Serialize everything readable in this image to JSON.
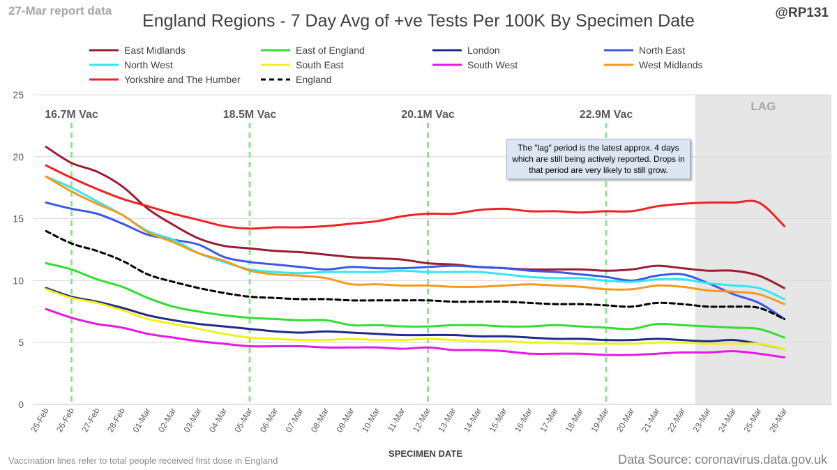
{
  "header": {
    "report_tag": "27-Mar report data",
    "handle": "@RP131"
  },
  "footer": {
    "vaccination_note": "Vaccination lines refer to total people received first dose in England",
    "data_source": "Data Source: coronavirus.data.gov.uk"
  },
  "annotation": {
    "lag_note": "The \"lag\" period is the latest approx. 4 days which are still being actively reported. Drops in that period are very likely to still grow."
  },
  "chart_data": {
    "type": "line",
    "title": "England Regions - 7 Day Avg of +ve Tests Per 100K By Specimen Date",
    "xlabel": "SPECIMEN DATE",
    "ylabel": "",
    "ylim": [
      0,
      25
    ],
    "yticks": [
      0,
      5,
      10,
      15,
      20,
      25
    ],
    "grid": true,
    "legend_position": "top",
    "categories": [
      "25-Feb",
      "26-Feb",
      "27-Feb",
      "28-Feb",
      "01-Mar",
      "02-Mar",
      "03-Mar",
      "04-Mar",
      "05-Mar",
      "06-Mar",
      "07-Mar",
      "08-Mar",
      "09-Mar",
      "10-Mar",
      "11-Mar",
      "12-Mar",
      "13-Mar",
      "14-Mar",
      "15-Mar",
      "16-Mar",
      "17-Mar",
      "18-Mar",
      "19-Mar",
      "20-Mar",
      "21-Mar",
      "22-Mar",
      "23-Mar",
      "24-Mar",
      "25-Mar",
      "26-Mar"
    ],
    "lag_region": {
      "label": "LAG",
      "from": "23-Mar",
      "to": "26-Mar"
    },
    "vaccination_markers": [
      {
        "label": "16.7M Vac",
        "date": "26-Feb"
      },
      {
        "label": "18.5M Vac",
        "date": "05-Mar"
      },
      {
        "label": "20.1M Vac",
        "date": "12-Mar"
      },
      {
        "label": "22.9M Vac",
        "date": "19-Mar"
      }
    ],
    "series": [
      {
        "name": "East Midlands",
        "color": "#9b1b30",
        "dash": false,
        "values": [
          20.8,
          19.5,
          18.8,
          17.6,
          15.8,
          14.5,
          13.4,
          12.8,
          12.6,
          12.4,
          12.3,
          12.1,
          11.9,
          11.8,
          11.7,
          11.4,
          11.3,
          11.1,
          11.0,
          10.9,
          10.9,
          10.9,
          10.8,
          10.9,
          11.2,
          11.0,
          10.8,
          10.8,
          10.4,
          9.4
        ]
      },
      {
        "name": "East of England",
        "color": "#33dd33",
        "dash": false,
        "values": [
          11.4,
          10.9,
          10.1,
          9.5,
          8.6,
          7.9,
          7.5,
          7.2,
          7.0,
          6.9,
          6.8,
          6.8,
          6.4,
          6.4,
          6.3,
          6.3,
          6.4,
          6.4,
          6.3,
          6.3,
          6.4,
          6.3,
          6.2,
          6.1,
          6.5,
          6.4,
          6.3,
          6.2,
          6.1,
          5.4
        ]
      },
      {
        "name": "London",
        "color": "#1f2a8c",
        "dash": false,
        "values": [
          9.4,
          8.7,
          8.3,
          7.8,
          7.2,
          6.8,
          6.5,
          6.3,
          6.1,
          5.9,
          5.8,
          5.9,
          5.8,
          5.7,
          5.6,
          5.6,
          5.6,
          5.5,
          5.5,
          5.4,
          5.3,
          5.3,
          5.2,
          5.2,
          5.3,
          5.2,
          5.1,
          5.2,
          4.9,
          4.5
        ]
      },
      {
        "name": "North East",
        "color": "#3a57e8",
        "dash": false,
        "values": [
          16.3,
          15.8,
          15.4,
          14.6,
          13.7,
          13.3,
          12.9,
          11.9,
          11.5,
          11.3,
          11.1,
          10.9,
          11.1,
          11.0,
          11.0,
          11.1,
          11.2,
          11.1,
          11.0,
          10.8,
          10.7,
          10.5,
          10.3,
          10.0,
          10.4,
          10.5,
          9.8,
          8.9,
          8.2,
          6.9
        ]
      },
      {
        "name": "North West",
        "color": "#33e6f2",
        "dash": false,
        "values": [
          18.4,
          17.5,
          16.4,
          15.3,
          14.0,
          13.3,
          12.2,
          11.5,
          10.9,
          10.7,
          10.6,
          10.7,
          10.7,
          10.7,
          10.8,
          10.7,
          10.7,
          10.7,
          10.5,
          10.3,
          10.2,
          10.2,
          10.0,
          9.9,
          10.1,
          10.1,
          9.8,
          9.6,
          9.4,
          8.5
        ]
      },
      {
        "name": "South East",
        "color": "#f2f21a",
        "dash": false,
        "values": [
          9.3,
          8.6,
          8.2,
          7.6,
          6.9,
          6.5,
          6.1,
          5.7,
          5.4,
          5.3,
          5.2,
          5.2,
          5.3,
          5.2,
          5.2,
          5.3,
          5.2,
          5.1,
          5.1,
          5.0,
          5.0,
          4.9,
          4.9,
          4.9,
          5.0,
          5.0,
          4.9,
          4.9,
          4.9,
          4.5
        ]
      },
      {
        "name": "South West",
        "color": "#e619e6",
        "dash": false,
        "values": [
          7.7,
          7.0,
          6.5,
          6.2,
          5.7,
          5.4,
          5.1,
          4.9,
          4.7,
          4.7,
          4.7,
          4.6,
          4.6,
          4.6,
          4.5,
          4.6,
          4.4,
          4.4,
          4.3,
          4.1,
          4.1,
          4.1,
          4.0,
          4.0,
          4.1,
          4.2,
          4.2,
          4.3,
          4.1,
          3.8
        ]
      },
      {
        "name": "West Midlands",
        "color": "#f29a1f",
        "dash": false,
        "values": [
          18.4,
          17.2,
          16.2,
          15.3,
          13.9,
          13.1,
          12.2,
          11.6,
          10.8,
          10.5,
          10.4,
          10.2,
          9.7,
          9.7,
          9.6,
          9.6,
          9.5,
          9.5,
          9.6,
          9.7,
          9.6,
          9.5,
          9.3,
          9.3,
          9.6,
          9.5,
          9.2,
          9.1,
          8.9,
          8.1
        ]
      },
      {
        "name": "Yorkshire and The Humber",
        "color": "#ee2222",
        "dash": false,
        "values": [
          19.3,
          18.3,
          17.4,
          16.6,
          16.0,
          15.4,
          14.9,
          14.4,
          14.2,
          14.3,
          14.3,
          14.4,
          14.6,
          14.8,
          15.2,
          15.4,
          15.4,
          15.7,
          15.8,
          15.6,
          15.6,
          15.5,
          15.6,
          15.6,
          16.0,
          16.2,
          16.3,
          16.3,
          16.3,
          14.4
        ]
      },
      {
        "name": "England",
        "color": "#000000",
        "dash": true,
        "values": [
          14.0,
          13.0,
          12.4,
          11.6,
          10.5,
          9.9,
          9.4,
          9.0,
          8.7,
          8.6,
          8.5,
          8.5,
          8.4,
          8.4,
          8.4,
          8.4,
          8.3,
          8.3,
          8.3,
          8.2,
          8.1,
          8.1,
          8.0,
          7.9,
          8.2,
          8.1,
          7.9,
          7.9,
          7.8,
          6.9
        ]
      }
    ]
  }
}
